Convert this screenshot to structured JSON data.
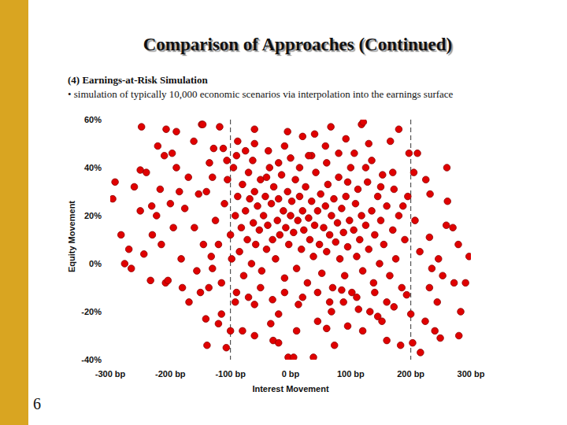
{
  "slide": {
    "title": "Comparison of Approaches (Continued)",
    "heading": "(4) Earnings-at-Risk Simulation",
    "bullet": "• simulation of typically 10,000 economic scenarios via interpolation into the earnings surface",
    "page_number": 6
  },
  "chart_data": {
    "type": "scatter",
    "x_label": "Interest Movement",
    "y_label": "Equity Movement",
    "color": "#e00000",
    "marker": "circle",
    "xlim": [
      -300,
      300
    ],
    "ylim": [
      -40,
      60
    ],
    "xticks": [
      {
        "value": -300,
        "label": "-300 bp"
      },
      {
        "value": -200,
        "label": "-200 bp"
      },
      {
        "value": -100,
        "label": "-100 bp"
      },
      {
        "value": 0,
        "label": "0 bp"
      },
      {
        "value": 100,
        "label": "100 bp"
      },
      {
        "value": 200,
        "label": "200 bp"
      },
      {
        "value": 300,
        "label": "300 bp"
      }
    ],
    "yticks": [
      {
        "value": 60,
        "label": "60%"
      },
      {
        "value": 40,
        "label": "40%"
      },
      {
        "value": 20,
        "label": "20%"
      },
      {
        "value": 0,
        "label": "0%"
      },
      {
        "value": -20,
        "label": "-20%"
      },
      {
        "value": -40,
        "label": "-40%"
      }
    ],
    "vlines": [
      -100,
      200
    ],
    "x": [
      -248,
      -148,
      -146,
      -118,
      118,
      121,
      67,
      20,
      -292,
      -296,
      -282,
      -276,
      -269,
      -208,
      -204,
      -141,
      -139,
      -107,
      -29,
      -4,
      5,
      38,
      73,
      183,
      216,
      203,
      249,
      224,
      283,
      291,
      272,
      297,
      259,
      246,
      261,
      232,
      211,
      197,
      166,
      130,
      92,
      -250,
      -250,
      -231,
      -223,
      -217,
      -207,
      -197,
      -190,
      -161,
      -221,
      -244,
      -233,
      -169,
      -136,
      -115,
      -92,
      -60,
      -33,
      -20,
      13,
      45,
      68,
      88,
      113,
      132,
      152,
      172,
      193,
      200,
      231,
      244,
      253,
      279,
      270,
      231,
      207,
      187,
      172,
      153,
      135,
      106,
      58,
      35,
      -10,
      -37,
      -63,
      -88,
      -106,
      -130,
      -153,
      -176,
      -195,
      -215,
      -182,
      -156,
      -132,
      -140,
      -125,
      -120,
      -110,
      -105,
      -100,
      -98,
      -95,
      -92,
      -88,
      -85,
      -82,
      -80,
      -78,
      -75,
      -72,
      -70,
      -68,
      -65,
      -62,
      -60,
      -58,
      -55,
      -52,
      -50,
      -48,
      -45,
      -42,
      -40,
      -38,
      -35,
      -32,
      -30,
      -28,
      -25,
      -22,
      -20,
      -18,
      -15,
      -12,
      -10,
      -8,
      -5,
      -3,
      0,
      2,
      5,
      8,
      10,
      12,
      15,
      18,
      20,
      22,
      25,
      28,
      30,
      32,
      35,
      38,
      40,
      42,
      45,
      48,
      50,
      52,
      55,
      58,
      60,
      62,
      65,
      68,
      70,
      72,
      75,
      78,
      80,
      82,
      85,
      88,
      90,
      92,
      95,
      98,
      100,
      102,
      105,
      108,
      110,
      112,
      115,
      118,
      120,
      125,
      128,
      130,
      135,
      138,
      140,
      145,
      148,
      150,
      155,
      160,
      165,
      170,
      175,
      180,
      185,
      190,
      195,
      -130,
      -115,
      -90,
      -70,
      -50,
      -30,
      -10,
      20,
      45,
      65,
      85,
      110,
      140,
      160,
      -145,
      -135,
      -128,
      -112,
      -90,
      -75,
      -60,
      -40,
      -20,
      0,
      15,
      30,
      60,
      80,
      95,
      125,
      150,
      170,
      -160,
      -170,
      -185,
      -200,
      -210,
      -230,
      -240,
      -260,
      -265,
      -180,
      -150,
      -120,
      -80,
      -60,
      10,
      60,
      120,
      160,
      240,
      260,
      280,
      225,
      215,
      235,
      205,
      -5,
      40,
      -60,
      180,
      -190,
      145,
      95,
      -20,
      -100
    ],
    "values": [
      57,
      58,
      58,
      57,
      58,
      59,
      57,
      53,
      34,
      27,
      12,
      0,
      6,
      -8,
      -7,
      -23,
      -34,
      -35,
      -32,
      -39,
      -39,
      -39,
      -34,
      -34,
      -37,
      -33,
      -31,
      -24,
      -20,
      -8,
      -8,
      3,
      16,
      2,
      26,
      29,
      46,
      46,
      51,
      50,
      52,
      39,
      22,
      24,
      20,
      31,
      56,
      46,
      40,
      51,
      49,
      4,
      -7,
      -16,
      -10,
      -21,
      -16,
      -17,
      -25,
      -21,
      -17,
      -24,
      -20,
      -16,
      -19,
      -20,
      -24,
      -18,
      -13,
      -21,
      -10,
      -16,
      -5,
      8,
      15,
      11,
      18,
      24,
      31,
      37,
      43,
      46,
      49,
      45,
      49,
      47,
      43,
      51,
      43,
      36,
      29,
      23,
      15,
      8,
      2,
      -3,
      3,
      30,
      18,
      8,
      25,
      35,
      12,
      2,
      40,
      20,
      28,
      5,
      15,
      33,
      -5,
      22,
      10,
      38,
      27,
      0,
      17,
      30,
      8,
      24,
      14,
      35,
      -3,
      20,
      28,
      6,
      16,
      40,
      25,
      10,
      32,
      2,
      18,
      27,
      12,
      37,
      22,
      -6,
      15,
      30,
      8,
      20,
      26,
      13,
      35,
      -2,
      18,
      28,
      6,
      22,
      14,
      32,
      -8,
      19,
      10,
      26,
      3,
      16,
      38,
      22,
      8,
      29,
      -4,
      15,
      24,
      5,
      33,
      12,
      20,
      -10,
      27,
      9,
      17,
      36,
      2,
      23,
      13,
      -5,
      28,
      7,
      18,
      40,
      -12,
      14,
      25,
      3,
      31,
      10,
      20,
      -3,
      16,
      34,
      6,
      22,
      -8,
      12,
      28,
      0,
      18,
      8,
      24,
      -5,
      14,
      2,
      20,
      -10,
      10,
      28,
      -2,
      -8,
      -12,
      -14,
      -10,
      -15,
      -12,
      -14,
      -12,
      -16,
      -11,
      -14,
      -12,
      -16,
      8,
      42,
      48,
      48,
      45,
      47,
      50,
      36,
      42,
      44,
      40,
      45,
      42,
      46,
      34,
      40,
      32,
      38,
      15,
      36,
      30,
      25,
      45,
      12,
      38,
      32,
      -2,
      -10,
      -12,
      -25,
      -28,
      -30,
      -28,
      -27,
      -28,
      -32,
      -28,
      40,
      -30,
      35,
      5,
      -2,
      38,
      55,
      54,
      56,
      56,
      55,
      -22,
      -26,
      -33,
      -28
    ]
  }
}
